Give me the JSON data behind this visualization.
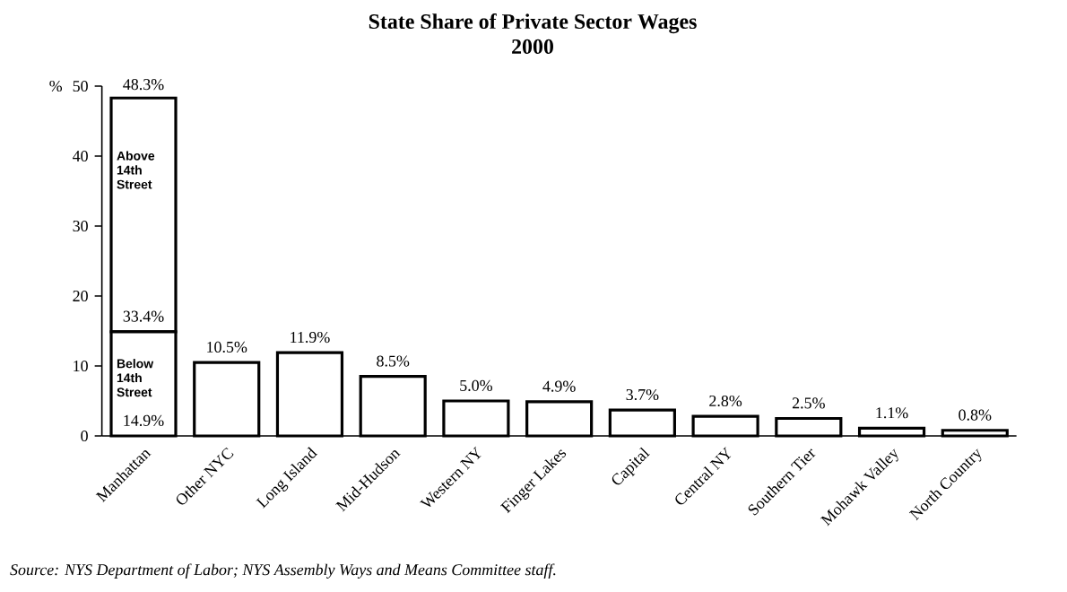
{
  "chart_data": {
    "type": "bar",
    "title": "State Share of Private Sector Wages",
    "subtitle": "2000",
    "ylabel": "%",
    "categories": [
      "Manhattan",
      "Other NYC",
      "Long Island",
      "Mid-Hudson",
      "Western NY",
      "Finger Lakes",
      "Capital",
      "Central NY",
      "Southern Tier",
      "Mohawk Valley",
      "North Country"
    ],
    "stacked": true,
    "series": [
      {
        "name": "Below 14th Street",
        "color": "#ffffff",
        "values": [
          14.9,
          10.5,
          11.9,
          8.5,
          5.0,
          4.9,
          3.7,
          2.8,
          2.5,
          1.1,
          0.8
        ],
        "value_labels": [
          "14.9%",
          "10.5%",
          "11.9%",
          "8.5%",
          "5.0%",
          "4.9%",
          "3.7%",
          "2.8%",
          "2.5%",
          "1.1%",
          "0.8%"
        ]
      },
      {
        "name": "Above 14th Street",
        "color": "#ffffff",
        "values": [
          33.4,
          null,
          null,
          null,
          null,
          null,
          null,
          null,
          null,
          null,
          null
        ],
        "value_labels": [
          "33.4%",
          null,
          null,
          null,
          null,
          null,
          null,
          null,
          null,
          null,
          null
        ]
      }
    ],
    "totals": [
      "48.3%",
      null,
      null,
      null,
      null,
      null,
      null,
      null,
      null,
      null,
      null
    ],
    "ylim": [
      0,
      50
    ],
    "yticks": [
      0,
      10,
      20,
      30,
      40,
      50
    ],
    "grid": false,
    "legend": false,
    "annotations": [
      "Source:  NYS Department of Labor; NYS Assembly Ways and Means Committee staff."
    ]
  }
}
